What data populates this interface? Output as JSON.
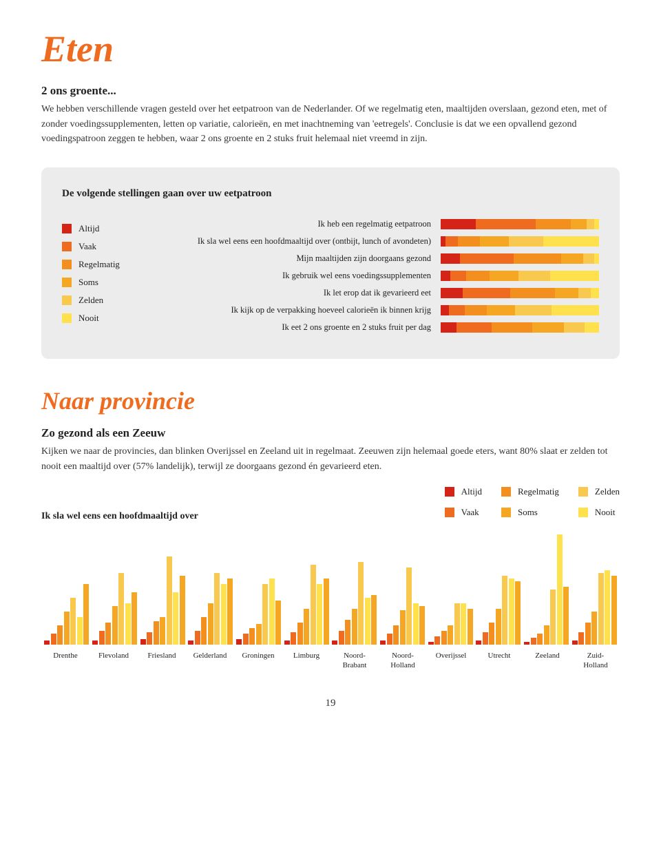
{
  "page": {
    "title": "Eten",
    "subtitle": "2 ons groente...",
    "body": "We hebben verschillende vragen gesteld over het eetpatroon van de Nederlander. Of we regelmatig eten, maaltijden overslaan, gezond eten, met of zonder voedingssupplementen, letten op variatie, calorieën, en met inachtneming van 'eetregels'. Conclusie is dat we een opvallend gezond voedingspatroon zeggen te hebben, waar 2 ons groente en 2 stuks fruit helemaal niet vreemd in zijn.",
    "number": "19"
  },
  "colors": {
    "altijd": "#d32417",
    "vaak": "#ef6b1f",
    "regelmatig": "#f28f1e",
    "soms": "#f5a623",
    "zelden": "#f8c84f",
    "nooit": "#ffe14d"
  },
  "legend": {
    "items": [
      {
        "label": "Altijd",
        "color": "#d32417"
      },
      {
        "label": "Vaak",
        "color": "#ef6b1f"
      },
      {
        "label": "Regelmatig",
        "color": "#f28f1e"
      },
      {
        "label": "Soms",
        "color": "#f5a623"
      },
      {
        "label": "Zelden",
        "color": "#f8c84f"
      },
      {
        "label": "Nooit",
        "color": "#ffe14d"
      }
    ]
  },
  "stacked": {
    "heading": "De volgende stellingen gaan over uw eetpatroon",
    "rows": [
      {
        "label": "Ik heb een regelmatig eetpatroon",
        "segs": [
          22,
          38,
          22,
          10,
          5,
          3
        ]
      },
      {
        "label": "Ik sla wel eens een hoofdmaaltijd over (ontbijt, lunch of avondeten)",
        "segs": [
          3,
          8,
          14,
          18,
          22,
          35
        ]
      },
      {
        "label": "Mijn maaltijden zijn doorgaans gezond",
        "segs": [
          12,
          34,
          30,
          14,
          7,
          3
        ]
      },
      {
        "label": "Ik gebruik wel eens voedingssupplementen",
        "segs": [
          6,
          10,
          15,
          18,
          20,
          31
        ]
      },
      {
        "label": "Ik let erop dat ik gevarieerd eet",
        "segs": [
          14,
          30,
          28,
          15,
          8,
          5
        ]
      },
      {
        "label": "Ik kijk op de verpakking hoeveel calorieën ik binnen krijg",
        "segs": [
          5,
          10,
          14,
          18,
          23,
          30
        ]
      },
      {
        "label": "Ik eet 2 ons groente en 2 stuks fruit per dag",
        "segs": [
          10,
          22,
          26,
          20,
          13,
          9
        ]
      }
    ]
  },
  "province": {
    "title": "Naar provincie",
    "subtitle": "Zo gezond als een Zeeuw",
    "body": "Kijken we naar de provincies, dan blinken Overijssel en Zeeland uit in regelmaat. Zeeuwen zijn helemaal goede eters, want 80% slaat er zelden tot nooit een maaltijd over (57% landelijk), terwijl ze doorgaans gezond én gevarieerd eten.",
    "question": "Ik sla wel eens een hoofdmaaltijd over",
    "provinces": [
      "Drenthe",
      "Flevoland",
      "Friesland",
      "Gelderland",
      "Groningen",
      "Limburg",
      "Noord-\nBrabant",
      "Noord-\nHolland",
      "Overijssel",
      "Utrecht",
      "Zeeland",
      "Zuid-\nHolland"
    ],
    "max": 50,
    "data": [
      [
        3,
        8,
        14,
        24,
        34,
        20,
        44
      ],
      [
        3,
        10,
        16,
        28,
        52,
        30,
        38
      ],
      [
        4,
        9,
        17,
        20,
        64,
        38,
        50
      ],
      [
        3,
        10,
        20,
        30,
        52,
        44,
        48
      ],
      [
        4,
        8,
        12,
        15,
        44,
        48,
        32
      ],
      [
        3,
        9,
        16,
        26,
        58,
        44,
        48
      ],
      [
        3,
        10,
        18,
        26,
        60,
        34,
        36
      ],
      [
        3,
        8,
        14,
        25,
        56,
        30,
        28
      ],
      [
        2,
        6,
        10,
        14,
        30,
        30,
        26
      ],
      [
        3,
        9,
        16,
        26,
        50,
        48,
        46
      ],
      [
        2,
        5,
        8,
        14,
        40,
        80,
        42
      ],
      [
        3,
        9,
        16,
        24,
        52,
        54,
        50
      ]
    ]
  }
}
